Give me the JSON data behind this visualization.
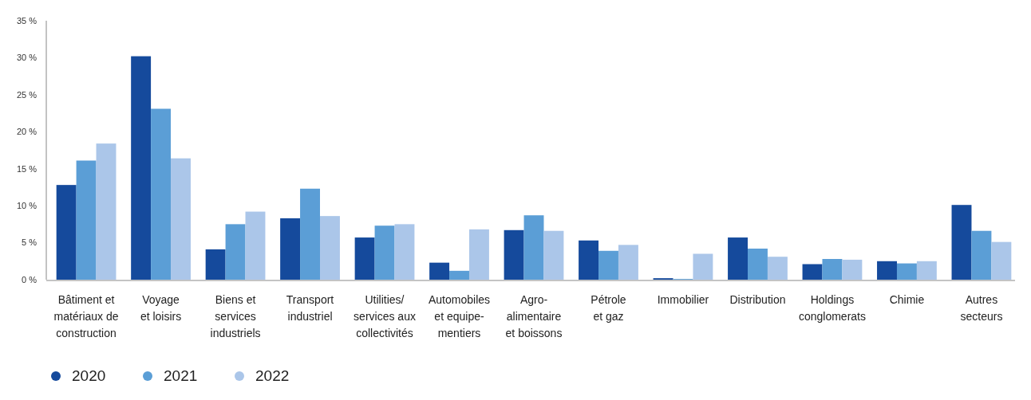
{
  "chart_data": {
    "type": "bar",
    "categories": [
      "Bâtiment et\nmatériaux de\nconstruction",
      "Voyage\net loisirs",
      "Biens et\nservices\nindustriels",
      "Transport\nindustriel",
      "Utilities/\nservices aux\ncollectivités",
      "Automobiles\net equipe-\nmentiers",
      "Agro-\nalimentaire\net boissons",
      "Pétrole\net gaz",
      "Immobilier",
      "Distribution",
      "Holdings\nconglomerats",
      "Chimie",
      "Autres\nsecteurs"
    ],
    "series": [
      {
        "name": "2020",
        "color": "#154a9c",
        "values": [
          12.8,
          30.2,
          4.1,
          8.3,
          5.7,
          2.3,
          6.7,
          5.3,
          0.2,
          5.7,
          2.1,
          2.5,
          10.1
        ]
      },
      {
        "name": "2021",
        "color": "#5b9ed6",
        "values": [
          16.1,
          23.1,
          7.5,
          12.3,
          7.3,
          1.2,
          8.7,
          3.9,
          0.1,
          4.2,
          2.8,
          2.2,
          6.6
        ]
      },
      {
        "name": "2022",
        "color": "#abc6e9",
        "values": [
          18.4,
          16.4,
          9.2,
          8.6,
          7.5,
          6.8,
          6.6,
          4.7,
          3.5,
          3.1,
          2.7,
          2.5,
          5.1
        ]
      }
    ],
    "ylim": [
      0,
      35
    ],
    "yticks": [
      {
        "value": 0,
        "label": "0 %"
      },
      {
        "value": 5,
        "label": "5 %"
      },
      {
        "value": 10,
        "label": "10 %"
      },
      {
        "value": 15,
        "label": "15 %"
      },
      {
        "value": 20,
        "label": "20 %"
      },
      {
        "value": 25,
        "label": "25 %"
      },
      {
        "value": 30,
        "label": "30 %"
      },
      {
        "value": 35,
        "label": "35 %"
      }
    ],
    "grid": false,
    "legend": "bottom left"
  }
}
